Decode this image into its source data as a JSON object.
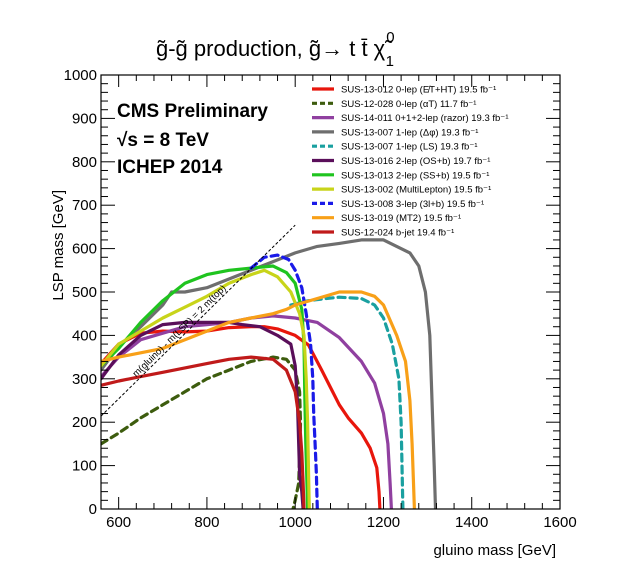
{
  "chart_data": {
    "type": "line",
    "title": "g̃-g̃ production,  g̃→ t t̄ χ̃",
    "title_sup": "0",
    "title_sub": "1",
    "xlabel": "gluino mass [GeV]",
    "ylabel": "LSP mass [GeV]",
    "xlim": [
      560,
      1600
    ],
    "ylim": [
      0,
      1000
    ],
    "x_ticks": [
      600,
      800,
      1000,
      1200,
      1400,
      1600
    ],
    "y_ticks": [
      0,
      100,
      200,
      300,
      400,
      500,
      600,
      700,
      800,
      900,
      1000
    ],
    "grid": false,
    "legend_position": "top-right",
    "annotations": {
      "cms_lines": [
        "CMS Preliminary",
        "√s = 8 TeV",
        "ICHEP 2014"
      ],
      "diagonal_label": "m(gluino) - m(LSP) = 2 m(top)"
    },
    "series": [
      {
        "name": "SUS-13-012  0-lep (E̸T+HT)  19.5 fb⁻¹",
        "color": "#e8160c",
        "dash": "solid",
        "points": [
          [
            560,
            335
          ],
          [
            600,
            380
          ],
          [
            650,
            405
          ],
          [
            700,
            410
          ],
          [
            750,
            408
          ],
          [
            800,
            410
          ],
          [
            850,
            418
          ],
          [
            900,
            420
          ],
          [
            930,
            420
          ],
          [
            960,
            415
          ],
          [
            1000,
            400
          ],
          [
            1030,
            378
          ],
          [
            1060,
            320
          ],
          [
            1080,
            280
          ],
          [
            1100,
            240
          ],
          [
            1120,
            210
          ],
          [
            1150,
            175
          ],
          [
            1170,
            140
          ],
          [
            1185,
            95
          ],
          [
            1190,
            40
          ],
          [
            1192,
            0
          ]
        ]
      },
      {
        "name": "SUS-12-028  0-lep (αT)  11.7 fb⁻¹",
        "color": "#3d5c0e",
        "dash": "dash",
        "points": [
          [
            560,
            150
          ],
          [
            600,
            175
          ],
          [
            650,
            210
          ],
          [
            700,
            240
          ],
          [
            750,
            270
          ],
          [
            800,
            300
          ],
          [
            850,
            320
          ],
          [
            900,
            340
          ],
          [
            950,
            350
          ],
          [
            980,
            345
          ],
          [
            1000,
            320
          ],
          [
            1010,
            270
          ],
          [
            1012,
            200
          ],
          [
            1010,
            120
          ],
          [
            1008,
            60
          ],
          [
            1000,
            20
          ],
          [
            995,
            0
          ]
        ]
      },
      {
        "name": "SUS-14-011  0+1+2-lep (razor)  19.3 fb⁻¹",
        "color": "#9040a0",
        "dash": "solid",
        "points": [
          [
            560,
            305
          ],
          [
            600,
            350
          ],
          [
            650,
            390
          ],
          [
            700,
            405
          ],
          [
            750,
            420
          ],
          [
            800,
            425
          ],
          [
            850,
            430
          ],
          [
            900,
            440
          ],
          [
            950,
            445
          ],
          [
            1000,
            440
          ],
          [
            1050,
            430
          ],
          [
            1100,
            395
          ],
          [
            1150,
            340
          ],
          [
            1180,
            290
          ],
          [
            1200,
            220
          ],
          [
            1210,
            150
          ],
          [
            1215,
            60
          ],
          [
            1218,
            0
          ]
        ]
      },
      {
        "name": "SUS-13-007  1-lep (Δφ)  19.3 fb⁻¹",
        "color": "#6e6e6e",
        "dash": "solid",
        "points": [
          [
            560,
            320
          ],
          [
            600,
            375
          ],
          [
            650,
            420
          ],
          [
            700,
            470
          ],
          [
            720,
            500
          ],
          [
            750,
            500
          ],
          [
            800,
            510
          ],
          [
            850,
            530
          ],
          [
            900,
            550
          ],
          [
            950,
            570
          ],
          [
            1000,
            590
          ],
          [
            1050,
            605
          ],
          [
            1100,
            612
          ],
          [
            1150,
            620
          ],
          [
            1200,
            620
          ],
          [
            1230,
            605
          ],
          [
            1260,
            590
          ],
          [
            1280,
            560
          ],
          [
            1295,
            500
          ],
          [
            1305,
            400
          ],
          [
            1310,
            250
          ],
          [
            1315,
            100
          ],
          [
            1318,
            0
          ]
        ]
      },
      {
        "name": "SUS-13-007  1-lep (LS)  19.3 fb⁻¹",
        "color": "#1aa0a0",
        "dash": "dash",
        "points": [
          [
            990,
            470
          ],
          [
            1030,
            480
          ],
          [
            1070,
            485
          ],
          [
            1100,
            488
          ],
          [
            1150,
            485
          ],
          [
            1180,
            470
          ],
          [
            1200,
            440
          ],
          [
            1220,
            380
          ],
          [
            1235,
            300
          ],
          [
            1240,
            200
          ],
          [
            1242,
            100
          ],
          [
            1244,
            0
          ]
        ]
      },
      {
        "name": "SUS-13-016  2-lep (OS+b)  19.7 fb⁻¹",
        "color": "#5a0f5a",
        "dash": "solid",
        "points": [
          [
            560,
            300
          ],
          [
            600,
            355
          ],
          [
            650,
            400
          ],
          [
            700,
            425
          ],
          [
            750,
            430
          ],
          [
            800,
            430
          ],
          [
            850,
            430
          ],
          [
            880,
            425
          ],
          [
            920,
            420
          ],
          [
            960,
            400
          ],
          [
            990,
            380
          ],
          [
            1000,
            330
          ],
          [
            1005,
            250
          ],
          [
            1008,
            150
          ],
          [
            1010,
            80
          ],
          [
            1015,
            40
          ],
          [
            1018,
            0
          ]
        ]
      },
      {
        "name": "SUS-13-013  2-lep (SS+b)  19.5 fb⁻¹",
        "color": "#1fc41f",
        "dash": "solid",
        "points": [
          [
            560,
            330
          ],
          [
            600,
            370
          ],
          [
            650,
            430
          ],
          [
            700,
            480
          ],
          [
            750,
            520
          ],
          [
            800,
            540
          ],
          [
            850,
            550
          ],
          [
            900,
            555
          ],
          [
            950,
            560
          ],
          [
            980,
            545
          ],
          [
            1000,
            520
          ],
          [
            1015,
            460
          ],
          [
            1020,
            380
          ],
          [
            1022,
            250
          ],
          [
            1024,
            150
          ],
          [
            1026,
            80
          ],
          [
            1028,
            0
          ]
        ]
      },
      {
        "name": "SUS-13-002  (MultiLepton)  19.5 fb⁻¹",
        "color": "#c8d41a",
        "dash": "solid",
        "points": [
          [
            560,
            330
          ],
          [
            600,
            380
          ],
          [
            650,
            410
          ],
          [
            700,
            440
          ],
          [
            750,
            465
          ],
          [
            800,
            490
          ],
          [
            850,
            520
          ],
          [
            900,
            540
          ],
          [
            930,
            550
          ],
          [
            960,
            535
          ],
          [
            990,
            500
          ],
          [
            1010,
            450
          ],
          [
            1020,
            400
          ],
          [
            1025,
            300
          ],
          [
            1028,
            200
          ],
          [
            1030,
            100
          ],
          [
            1032,
            0
          ]
        ]
      },
      {
        "name": "SUS-13-008  3-lep (3l+b)  19.5 fb⁻¹",
        "color": "#1a1ae8",
        "dash": "dash",
        "points": [
          [
            900,
            555
          ],
          [
            930,
            580
          ],
          [
            960,
            585
          ],
          [
            985,
            575
          ],
          [
            1000,
            550
          ],
          [
            1015,
            510
          ],
          [
            1025,
            450
          ],
          [
            1035,
            380
          ],
          [
            1040,
            300
          ],
          [
            1042,
            220
          ],
          [
            1045,
            150
          ],
          [
            1048,
            80
          ],
          [
            1050,
            0
          ]
        ]
      },
      {
        "name": "SUS-13-019  (MT2)  19.5 fb⁻¹",
        "color": "#f8a018",
        "dash": "solid",
        "points": [
          [
            560,
            340
          ],
          [
            600,
            350
          ],
          [
            650,
            360
          ],
          [
            700,
            370
          ],
          [
            750,
            390
          ],
          [
            800,
            410
          ],
          [
            850,
            430
          ],
          [
            900,
            440
          ],
          [
            950,
            450
          ],
          [
            980,
            460
          ],
          [
            1000,
            470
          ],
          [
            1050,
            485
          ],
          [
            1100,
            500
          ],
          [
            1150,
            500
          ],
          [
            1180,
            490
          ],
          [
            1200,
            470
          ],
          [
            1230,
            400
          ],
          [
            1250,
            340
          ],
          [
            1260,
            250
          ],
          [
            1265,
            150
          ],
          [
            1268,
            60
          ],
          [
            1270,
            0
          ]
        ]
      },
      {
        "name": "SUS-12-024  b-jet  19.4 fb⁻¹",
        "color": "#c01a1a",
        "dash": "solid",
        "points": [
          [
            560,
            285
          ],
          [
            600,
            295
          ],
          [
            650,
            305
          ],
          [
            700,
            315
          ],
          [
            750,
            325
          ],
          [
            800,
            335
          ],
          [
            850,
            345
          ],
          [
            900,
            350
          ],
          [
            950,
            345
          ],
          [
            980,
            320
          ],
          [
            1000,
            270
          ],
          [
            1010,
            200
          ],
          [
            1015,
            130
          ],
          [
            1018,
            60
          ],
          [
            1020,
            0
          ]
        ]
      }
    ]
  }
}
